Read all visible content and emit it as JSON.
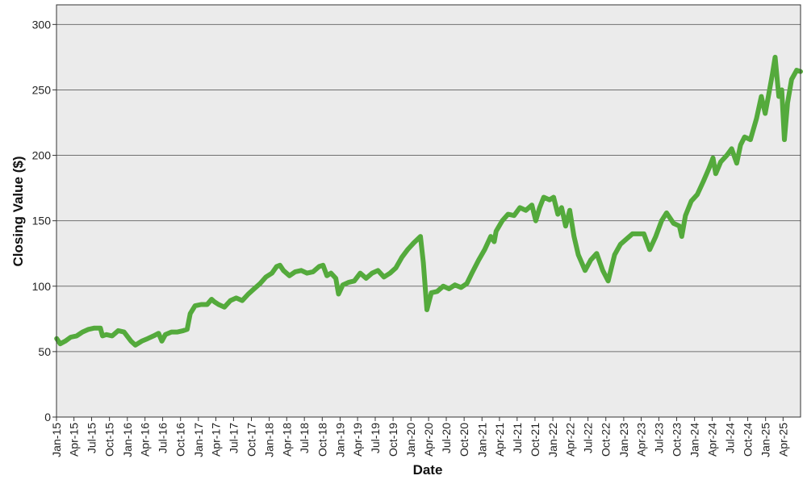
{
  "colors": {
    "line": "#54aa3c",
    "plot_background": "#ebebeb",
    "gridline": "#707070",
    "axis": "#333333"
  },
  "chart_data": {
    "type": "line",
    "title": "",
    "xlabel": "Date",
    "ylabel": "Closing Value ($)",
    "ylim": [
      0,
      315
    ],
    "yticks": [
      0,
      50,
      100,
      150,
      200,
      250,
      300
    ],
    "xlim": [
      "2015-01-01",
      "2025-06-30"
    ],
    "xticks": [
      {
        "date": "2015-01-01",
        "label": "Jan-15"
      },
      {
        "date": "2015-04-01",
        "label": "Apr-15"
      },
      {
        "date": "2015-07-01",
        "label": "Jul-15"
      },
      {
        "date": "2015-10-01",
        "label": "Oct-15"
      },
      {
        "date": "2016-01-01",
        "label": "Jan-16"
      },
      {
        "date": "2016-04-01",
        "label": "Apr-16"
      },
      {
        "date": "2016-07-01",
        "label": "Jul-16"
      },
      {
        "date": "2016-10-01",
        "label": "Oct-16"
      },
      {
        "date": "2017-01-01",
        "label": "Jan-17"
      },
      {
        "date": "2017-04-01",
        "label": "Apr-17"
      },
      {
        "date": "2017-07-01",
        "label": "Jul-17"
      },
      {
        "date": "2017-10-01",
        "label": "Oct-17"
      },
      {
        "date": "2018-01-01",
        "label": "Jan-18"
      },
      {
        "date": "2018-04-01",
        "label": "Apr-18"
      },
      {
        "date": "2018-07-01",
        "label": "Jul-18"
      },
      {
        "date": "2018-10-01",
        "label": "Oct-18"
      },
      {
        "date": "2019-01-01",
        "label": "Jan-19"
      },
      {
        "date": "2019-04-01",
        "label": "Apr-19"
      },
      {
        "date": "2019-07-01",
        "label": "Jul-19"
      },
      {
        "date": "2019-10-01",
        "label": "Oct-19"
      },
      {
        "date": "2020-01-01",
        "label": "Jan-20"
      },
      {
        "date": "2020-04-01",
        "label": "Apr-20"
      },
      {
        "date": "2020-07-01",
        "label": "Jul-20"
      },
      {
        "date": "2020-10-01",
        "label": "Oct-20"
      },
      {
        "date": "2021-01-01",
        "label": "Jan-21"
      },
      {
        "date": "2021-04-01",
        "label": "Apr-21"
      },
      {
        "date": "2021-07-01",
        "label": "Jul-21"
      },
      {
        "date": "2021-10-01",
        "label": "Oct-21"
      },
      {
        "date": "2022-01-01",
        "label": "Jan-22"
      },
      {
        "date": "2022-04-01",
        "label": "Apr-22"
      },
      {
        "date": "2022-07-01",
        "label": "Jul-22"
      },
      {
        "date": "2022-10-01",
        "label": "Oct-22"
      },
      {
        "date": "2023-01-01",
        "label": "Jan-23"
      },
      {
        "date": "2023-04-01",
        "label": "Apr-23"
      },
      {
        "date": "2023-07-01",
        "label": "Jul-23"
      },
      {
        "date": "2023-10-01",
        "label": "Oct-23"
      },
      {
        "date": "2024-01-01",
        "label": "Jan-24"
      },
      {
        "date": "2024-04-01",
        "label": "Apr-24"
      },
      {
        "date": "2024-07-01",
        "label": "Jul-24"
      },
      {
        "date": "2024-10-01",
        "label": "Oct-24"
      },
      {
        "date": "2025-01-01",
        "label": "Jan-25"
      },
      {
        "date": "2025-04-01",
        "label": "Apr-25"
      }
    ],
    "grid": true,
    "legend": "none",
    "series": [
      {
        "name": "",
        "points": [
          [
            "2015-01-02",
            60
          ],
          [
            "2015-01-20",
            56
          ],
          [
            "2015-02-15",
            58
          ],
          [
            "2015-03-15",
            61
          ],
          [
            "2015-04-15",
            62
          ],
          [
            "2015-05-15",
            65
          ],
          [
            "2015-06-15",
            67
          ],
          [
            "2015-07-15",
            68
          ],
          [
            "2015-08-15",
            68
          ],
          [
            "2015-08-26",
            62
          ],
          [
            "2015-09-15",
            63
          ],
          [
            "2015-10-15",
            62
          ],
          [
            "2015-11-15",
            66
          ],
          [
            "2015-12-15",
            65
          ],
          [
            "2016-01-20",
            58
          ],
          [
            "2016-02-11",
            55
          ],
          [
            "2016-03-15",
            58
          ],
          [
            "2016-04-15",
            60
          ],
          [
            "2016-05-15",
            62
          ],
          [
            "2016-06-10",
            64
          ],
          [
            "2016-06-27",
            58
          ],
          [
            "2016-07-15",
            63
          ],
          [
            "2016-08-15",
            65
          ],
          [
            "2016-09-15",
            65
          ],
          [
            "2016-10-15",
            66
          ],
          [
            "2016-11-04",
            67
          ],
          [
            "2016-11-20",
            79
          ],
          [
            "2016-12-15",
            85
          ],
          [
            "2017-01-15",
            86
          ],
          [
            "2017-02-15",
            86
          ],
          [
            "2017-03-10",
            90
          ],
          [
            "2017-03-25",
            88
          ],
          [
            "2017-04-15",
            86
          ],
          [
            "2017-05-15",
            84
          ],
          [
            "2017-06-15",
            89
          ],
          [
            "2017-07-15",
            91
          ],
          [
            "2017-08-15",
            89
          ],
          [
            "2017-09-15",
            94
          ],
          [
            "2017-10-15",
            98
          ],
          [
            "2017-11-15",
            102
          ],
          [
            "2017-12-15",
            107
          ],
          [
            "2018-01-15",
            110
          ],
          [
            "2018-02-08",
            115
          ],
          [
            "2018-02-25",
            116
          ],
          [
            "2018-03-15",
            112
          ],
          [
            "2018-04-15",
            108
          ],
          [
            "2018-05-15",
            111
          ],
          [
            "2018-06-15",
            112
          ],
          [
            "2018-07-15",
            110
          ],
          [
            "2018-08-15",
            111
          ],
          [
            "2018-09-15",
            115
          ],
          [
            "2018-10-05",
            116
          ],
          [
            "2018-10-25",
            108
          ],
          [
            "2018-11-15",
            110
          ],
          [
            "2018-12-10",
            106
          ],
          [
            "2018-12-24",
            94
          ],
          [
            "2019-01-15",
            101
          ],
          [
            "2019-02-15",
            103
          ],
          [
            "2019-03-15",
            104
          ],
          [
            "2019-04-15",
            110
          ],
          [
            "2019-05-15",
            106
          ],
          [
            "2019-06-15",
            110
          ],
          [
            "2019-07-15",
            112
          ],
          [
            "2019-08-15",
            107
          ],
          [
            "2019-09-15",
            110
          ],
          [
            "2019-10-15",
            114
          ],
          [
            "2019-11-15",
            122
          ],
          [
            "2019-12-15",
            128
          ],
          [
            "2020-01-15",
            133
          ],
          [
            "2020-02-19",
            138
          ],
          [
            "2020-03-05",
            118
          ],
          [
            "2020-03-23",
            82
          ],
          [
            "2020-04-15",
            95
          ],
          [
            "2020-05-15",
            96
          ],
          [
            "2020-06-15",
            100
          ],
          [
            "2020-07-15",
            98
          ],
          [
            "2020-08-15",
            101
          ],
          [
            "2020-09-15",
            99
          ],
          [
            "2020-10-15",
            102
          ],
          [
            "2020-11-10",
            110
          ],
          [
            "2020-12-15",
            120
          ],
          [
            "2021-01-15",
            128
          ],
          [
            "2021-02-15",
            138
          ],
          [
            "2021-03-05",
            134
          ],
          [
            "2021-03-15",
            142
          ],
          [
            "2021-04-15",
            150
          ],
          [
            "2021-05-15",
            155
          ],
          [
            "2021-06-15",
            154
          ],
          [
            "2021-07-15",
            160
          ],
          [
            "2021-08-15",
            158
          ],
          [
            "2021-09-15",
            162
          ],
          [
            "2021-10-05",
            150
          ],
          [
            "2021-10-25",
            160
          ],
          [
            "2021-11-15",
            168
          ],
          [
            "2021-12-15",
            166
          ],
          [
            "2022-01-05",
            168
          ],
          [
            "2022-01-27",
            155
          ],
          [
            "2022-02-15",
            160
          ],
          [
            "2022-03-08",
            146
          ],
          [
            "2022-03-29",
            158
          ],
          [
            "2022-04-20",
            138
          ],
          [
            "2022-05-12",
            124
          ],
          [
            "2022-06-16",
            112
          ],
          [
            "2022-07-15",
            120
          ],
          [
            "2022-08-15",
            125
          ],
          [
            "2022-09-15",
            112
          ],
          [
            "2022-10-13",
            104
          ],
          [
            "2022-11-15",
            124
          ],
          [
            "2022-12-15",
            132
          ],
          [
            "2023-01-15",
            136
          ],
          [
            "2023-02-15",
            140
          ],
          [
            "2023-03-15",
            140
          ],
          [
            "2023-04-15",
            140
          ],
          [
            "2023-05-15",
            128
          ],
          [
            "2023-06-15",
            138
          ],
          [
            "2023-07-15",
            150
          ],
          [
            "2023-08-10",
            156
          ],
          [
            "2023-09-15",
            148
          ],
          [
            "2023-10-15",
            146
          ],
          [
            "2023-10-27",
            138
          ],
          [
            "2023-11-15",
            154
          ],
          [
            "2023-12-15",
            165
          ],
          [
            "2024-01-15",
            170
          ],
          [
            "2024-02-15",
            180
          ],
          [
            "2024-03-15",
            190
          ],
          [
            "2024-04-05",
            198
          ],
          [
            "2024-04-19",
            186
          ],
          [
            "2024-05-15",
            195
          ],
          [
            "2024-06-15",
            200
          ],
          [
            "2024-07-10",
            205
          ],
          [
            "2024-08-05",
            194
          ],
          [
            "2024-08-25",
            208
          ],
          [
            "2024-09-15",
            214
          ],
          [
            "2024-10-15",
            212
          ],
          [
            "2024-11-15",
            228
          ],
          [
            "2024-12-10",
            245
          ],
          [
            "2024-12-30",
            232
          ],
          [
            "2025-01-15",
            245
          ],
          [
            "2025-02-05",
            262
          ],
          [
            "2025-02-19",
            275
          ],
          [
            "2025-03-10",
            245
          ],
          [
            "2025-03-25",
            250
          ],
          [
            "2025-04-08",
            212
          ],
          [
            "2025-04-24",
            240
          ],
          [
            "2025-05-15",
            258
          ],
          [
            "2025-06-10",
            265
          ],
          [
            "2025-06-30",
            264
          ]
        ]
      }
    ]
  }
}
